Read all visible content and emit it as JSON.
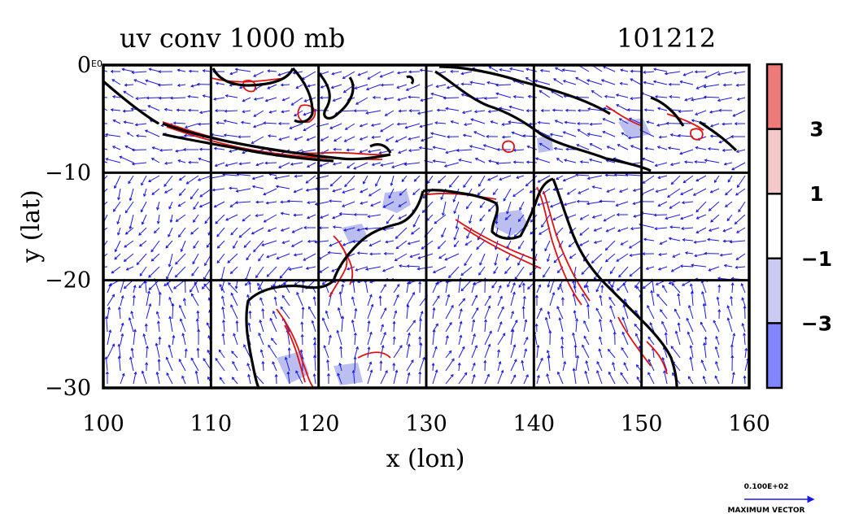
{
  "title": {
    "left": "uv conv 1000 mb",
    "right": "101212"
  },
  "axes": {
    "xlabel": "x (lon)",
    "ylabel": "y (lat)",
    "xticks": [
      "100",
      "110",
      "120",
      "130",
      "140",
      "150",
      "160"
    ],
    "yticks": [
      "0",
      "−10",
      "−20",
      "−30"
    ],
    "y_exponent_label": "E0",
    "xlim": [
      100,
      160
    ],
    "ylim": [
      -30,
      0
    ],
    "grid": true
  },
  "colorbar": {
    "labels": [
      "3",
      "1",
      "−1",
      "−3"
    ],
    "levels": [
      -5,
      -3,
      -1,
      1,
      3,
      5
    ],
    "colors": [
      "#7f86ff",
      "#c9ccf2",
      "#ffffff",
      "#f4c9c9",
      "#ee7a7a"
    ]
  },
  "legend": {
    "value": "0.100E+02",
    "label": "MAXIMUM VECTOR"
  },
  "colors": {
    "vector": "#1818e6",
    "positive_contour": "#e01010",
    "negative_fill": "#b3b8ee",
    "coast": "#000000"
  },
  "chart_data": {
    "type": "map",
    "title": "uv conv 1000 mb",
    "xlabel": "x (lon)",
    "ylabel": "y (lat)",
    "xlim": [
      100,
      160
    ],
    "ylim": [
      -30,
      0
    ],
    "field": "wind vectors with convergence contours"
  }
}
